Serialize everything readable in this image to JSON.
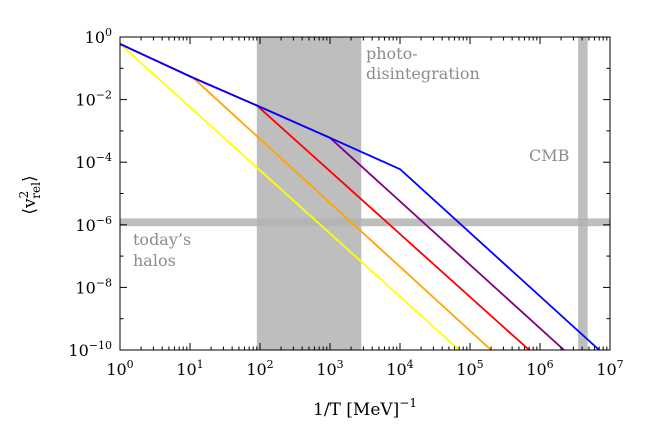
{
  "chart_data": {
    "type": "line",
    "xscale": "log",
    "yscale": "log",
    "xlim": [
      1,
      10000000
    ],
    "ylim": [
      1e-10,
      1
    ],
    "xlabel_main": "1/T [MeV]",
    "xlabel_exp": "−1",
    "ylabel_main": "⟨v",
    "ylabel_sup": "2",
    "ylabel_sub": "rel",
    "ylabel_close": "⟩",
    "x_ticks": [
      {
        "value": 1,
        "base": "10",
        "exp": "0"
      },
      {
        "value": 10,
        "base": "10",
        "exp": "1"
      },
      {
        "value": 100,
        "base": "10",
        "exp": "2"
      },
      {
        "value": 1000,
        "base": "10",
        "exp": "3"
      },
      {
        "value": 10000,
        "base": "10",
        "exp": "4"
      },
      {
        "value": 100000,
        "base": "10",
        "exp": "5"
      },
      {
        "value": 1000000,
        "base": "10",
        "exp": "6"
      },
      {
        "value": 10000000,
        "base": "10",
        "exp": "7"
      }
    ],
    "y_ticks": [
      {
        "value": 1,
        "base": "10",
        "exp": "0"
      },
      {
        "value": 0.01,
        "base": "10",
        "exp": "−2"
      },
      {
        "value": 0.0001,
        "base": "10",
        "exp": "−4"
      },
      {
        "value": 1e-06,
        "base": "10",
        "exp": "−6"
      },
      {
        "value": 1e-08,
        "base": "10",
        "exp": "−8"
      },
      {
        "value": 1e-10,
        "base": "10",
        "exp": "−10"
      }
    ],
    "series": [
      {
        "name": "yellow",
        "color": "#ffff00",
        "points": [
          [
            1,
            0.6
          ],
          [
            70000,
            1e-10
          ]
        ]
      },
      {
        "name": "orange",
        "color": "#ffa500",
        "points": [
          [
            1,
            0.6
          ],
          [
            11,
            0.05
          ],
          [
            200000,
            1e-10
          ]
        ]
      },
      {
        "name": "red",
        "color": "#ff0000",
        "points": [
          [
            1,
            0.6
          ],
          [
            11,
            0.05
          ],
          [
            90,
            0.0065
          ],
          [
            700000,
            1e-10
          ]
        ]
      },
      {
        "name": "purple",
        "color": "#800080",
        "points": [
          [
            1,
            0.6
          ],
          [
            11,
            0.05
          ],
          [
            90,
            0.0065
          ],
          [
            1000,
            0.0006
          ],
          [
            2200000,
            1e-10
          ]
        ]
      },
      {
        "name": "blue",
        "color": "#0000ff",
        "points": [
          [
            1,
            0.6
          ],
          [
            11,
            0.05
          ],
          [
            90,
            0.0065
          ],
          [
            1000,
            0.0006
          ],
          [
            10000,
            6e-05
          ],
          [
            7000000,
            1e-10
          ]
        ]
      }
    ],
    "bands": [
      {
        "name": "photo-disintegration",
        "orientation": "vertical",
        "x_range": [
          90,
          2800
        ],
        "color": "#b3b3b3"
      },
      {
        "name": "CMB",
        "orientation": "vertical",
        "x_range": [
          3500000,
          4800000
        ],
        "color": "#b3b3b3"
      },
      {
        "name": "today's halos",
        "orientation": "horizontal",
        "y_range": [
          9e-07,
          1.6e-06
        ],
        "color": "#b3b3b3"
      }
    ],
    "annotations": {
      "photo_line1": "photo-",
      "photo_line2": "disintegration",
      "cmb": "CMB",
      "halos_line1": "today’s",
      "halos_line2": "halos"
    }
  }
}
